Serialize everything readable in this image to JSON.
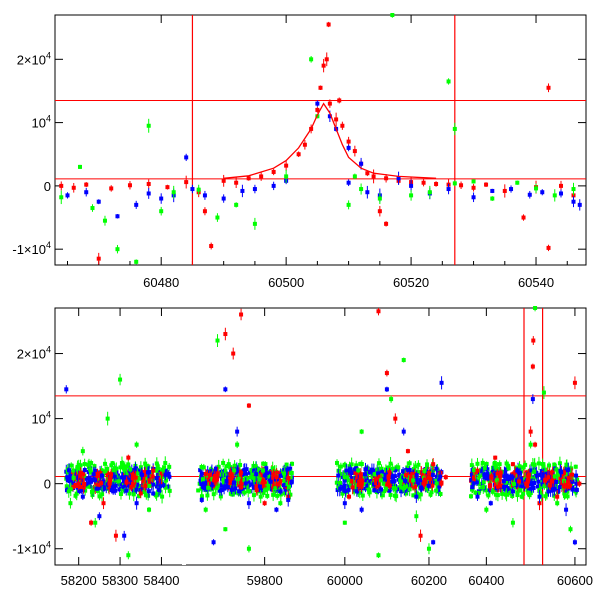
{
  "chart_data": [
    {
      "type": "scatter",
      "panel": "top",
      "title": "",
      "xlabel": "",
      "ylabel": "",
      "xlim": [
        60463,
        60548
      ],
      "ylim": [
        -12500,
        27000
      ],
      "x_ticks": [
        60480,
        60500,
        60520,
        60540
      ],
      "x_tick_labels": [
        "60480",
        "60500",
        "60520",
        "60540"
      ],
      "y_ticks": [
        -10000,
        0,
        10000,
        20000
      ],
      "y_tick_labels": [
        {
          "value": -10000,
          "base": "-1×10",
          "exp": "4"
        },
        {
          "value": 0,
          "base": "0",
          "exp": ""
        },
        {
          "value": 10000,
          "base": "10",
          "exp": "4"
        },
        {
          "value": 20000,
          "base": "2×10",
          "exp": "4"
        }
      ],
      "hlines": [
        13500,
        1100
      ],
      "vlines": [
        60485,
        60527
      ],
      "series": [
        {
          "color": "#ff0000",
          "points": [
            [
              60464,
              0
            ],
            [
              60466,
              -300
            ],
            [
              60468,
              200
            ],
            [
              60472,
              -400
            ],
            [
              60475,
              100
            ],
            [
              60478,
              300
            ],
            [
              60481,
              -200
            ],
            [
              60484,
              600
            ],
            [
              60486,
              -1000
            ],
            [
              60487,
              -4000
            ],
            [
              60488,
              -9500
            ],
            [
              60490,
              800
            ],
            [
              60492,
              500
            ],
            [
              60494,
              1200
            ],
            [
              60496,
              1500
            ],
            [
              60498,
              2200
            ],
            [
              60500,
              3200
            ],
            [
              60502,
              5000
            ],
            [
              60503,
              6500
            ],
            [
              60504,
              9000
            ],
            [
              60505,
              12000
            ],
            [
              60505.5,
              15500
            ],
            [
              60506,
              19000
            ],
            [
              60506.5,
              20000
            ],
            [
              60506.8,
              25500
            ],
            [
              60507,
              13000
            ],
            [
              60508,
              10500
            ],
            [
              60508.5,
              13500
            ],
            [
              60509,
              9500
            ],
            [
              60510,
              7000
            ],
            [
              60511,
              5500
            ],
            [
              60512,
              3500
            ],
            [
              60513,
              2000
            ],
            [
              60514,
              1500
            ],
            [
              60516,
              1200
            ],
            [
              60518,
              800
            ],
            [
              60520,
              600
            ],
            [
              60522,
              500
            ],
            [
              60524,
              300
            ],
            [
              60526,
              200
            ],
            [
              60528,
              100
            ],
            [
              60530,
              -300
            ],
            [
              60532,
              200
            ],
            [
              60535,
              -800
            ],
            [
              60538,
              -5000
            ],
            [
              60540,
              -200
            ],
            [
              60542,
              15500
            ],
            [
              60542,
              -9800
            ],
            [
              60544,
              0
            ],
            [
              60546,
              -1500
            ],
            [
              60470,
              -11500
            ],
            [
              60515,
              -4000
            ],
            [
              60516,
              -6000
            ]
          ]
        },
        {
          "color": "#0000ff",
          "points": [
            [
              60465,
              -1500
            ],
            [
              60468,
              -1000
            ],
            [
              60470,
              -2500
            ],
            [
              60473,
              -4800
            ],
            [
              60476,
              -3000
            ],
            [
              60478,
              -1200
            ],
            [
              60480,
              -2000
            ],
            [
              60482,
              -1500
            ],
            [
              60484,
              4500
            ],
            [
              60485,
              -500
            ],
            [
              60487,
              -1500
            ],
            [
              60490,
              -2000
            ],
            [
              60493,
              -800
            ],
            [
              60495,
              -500
            ],
            [
              60498,
              0
            ],
            [
              60500,
              800
            ],
            [
              60505,
              13000
            ],
            [
              60507,
              11000
            ],
            [
              60508,
              9000
            ],
            [
              60510,
              6000
            ],
            [
              60512,
              3500
            ],
            [
              60513,
              -1000
            ],
            [
              60515,
              -1500
            ],
            [
              60518,
              1200
            ],
            [
              60520,
              0
            ],
            [
              60523,
              -1200
            ],
            [
              60526,
              -500
            ],
            [
              60530,
              -1800
            ],
            [
              60533,
              -800
            ],
            [
              60536,
              -500
            ],
            [
              60539,
              -1400
            ],
            [
              60541,
              -1000
            ],
            [
              60544,
              -1200
            ],
            [
              60546,
              -2500
            ],
            [
              60547,
              -3000
            ],
            [
              60510,
              500
            ]
          ]
        },
        {
          "color": "#00ff00",
          "points": [
            [
              60464,
              -1800
            ],
            [
              60467,
              3000
            ],
            [
              60469,
              -3500
            ],
            [
              60471,
              -5500
            ],
            [
              60473,
              -10000
            ],
            [
              60476,
              -12000
            ],
            [
              60478,
              9500
            ],
            [
              60480,
              -4000
            ],
            [
              60482,
              -1000
            ],
            [
              60486,
              -600
            ],
            [
              60489,
              -5000
            ],
            [
              60492,
              -3000
            ],
            [
              60495,
              -6000
            ],
            [
              60500,
              1500
            ],
            [
              60504,
              20000
            ],
            [
              60505,
              11000
            ],
            [
              60511,
              1500
            ],
            [
              60512,
              -500
            ],
            [
              60515,
              -2000
            ],
            [
              60520,
              -1500
            ],
            [
              60523,
              -1000
            ],
            [
              60526,
              16500
            ],
            [
              60527,
              9000
            ],
            [
              60527,
              400
            ],
            [
              60530,
              700
            ],
            [
              60533,
              -2000
            ],
            [
              60537,
              500
            ],
            [
              60540,
              -400
            ],
            [
              60543,
              -1500
            ],
            [
              60546,
              -500
            ],
            [
              60517,
              27000
            ],
            [
              60510,
              -3000
            ]
          ]
        }
      ],
      "model_curve": [
        [
          60490,
          1200
        ],
        [
          60494,
          1600
        ],
        [
          60498,
          2800
        ],
        [
          60500,
          4000
        ],
        [
          60502,
          6000
        ],
        [
          60504,
          9000
        ],
        [
          60505,
          11200
        ],
        [
          60506,
          13000
        ],
        [
          60507,
          11500
        ],
        [
          60508,
          9000
        ],
        [
          60509,
          6500
        ],
        [
          60510,
          4500
        ],
        [
          60512,
          2800
        ],
        [
          60514,
          2000
        ],
        [
          60518,
          1500
        ],
        [
          60524,
          1200
        ]
      ]
    },
    {
      "type": "scatter",
      "panel": "bottom",
      "title": "",
      "xlabel": "",
      "ylabel": "",
      "segments": [
        {
          "xlim": [
            58150,
            58440
          ],
          "x_ticks": [
            58200,
            58300,
            58400
          ],
          "x_tick_labels": [
            "58200",
            "58300",
            "58400"
          ]
        },
        {
          "xlim": [
            59610,
            59890
          ],
          "x_ticks": [
            59800
          ],
          "x_tick_labels": [
            "59800"
          ]
        },
        {
          "xlim": [
            59960,
            60250
          ],
          "x_ticks": [
            60000,
            60200
          ],
          "x_tick_labels": [
            "60000",
            "60200"
          ]
        },
        {
          "xlim": [
            60345,
            60625
          ],
          "x_ticks": [
            60400,
            60600
          ],
          "x_tick_labels": [
            "60400",
            "60600"
          ]
        }
      ],
      "ylim": [
        -12500,
        27000
      ],
      "y_ticks": [
        -10000,
        0,
        10000,
        20000
      ],
      "y_tick_labels": [
        {
          "value": -10000,
          "base": "-1×10",
          "exp": "4"
        },
        {
          "value": 0,
          "base": "0",
          "exp": ""
        },
        {
          "value": 10000,
          "base": "10",
          "exp": "4"
        },
        {
          "value": 20000,
          "base": "2×10",
          "exp": "4"
        }
      ],
      "hlines": [
        13500,
        1100
      ],
      "vlines": [
        60485,
        60527
      ],
      "series": [
        {
          "color": "#ff0000",
          "points": [
            [
              58200,
              0
            ],
            [
              58230,
              -6000
            ],
            [
              58260,
              -3000
            ],
            [
              58290,
              -8000
            ],
            [
              58320,
              4000
            ],
            [
              58350,
              -1500
            ],
            [
              58380,
              2000
            ],
            [
              59650,
              1500
            ],
            [
              59700,
              23000
            ],
            [
              59720,
              20000
            ],
            [
              59740,
              26000
            ],
            [
              59760,
              12000
            ],
            [
              59780,
              -1000
            ],
            [
              59800,
              -3000
            ],
            [
              59830,
              1000
            ],
            [
              59860,
              -2000
            ],
            [
              60010,
              -2000
            ],
            [
              60040,
              500
            ],
            [
              60080,
              26500
            ],
            [
              60100,
              17000
            ],
            [
              60120,
              10000
            ],
            [
              60150,
              5000
            ],
            [
              60180,
              -8000
            ],
            [
              60210,
              3000
            ],
            [
              60240,
              1000
            ],
            [
              60380,
              2000
            ],
            [
              60420,
              4000
            ],
            [
              60460,
              3000
            ],
            [
              60490,
              0
            ],
            [
              60500,
              8000
            ],
            [
              60505,
              18000
            ],
            [
              60506,
              22000
            ],
            [
              60510,
              6000
            ],
            [
              60520,
              -3000
            ],
            [
              60540,
              1000
            ],
            [
              60560,
              -2000
            ],
            [
              60600,
              15500
            ],
            [
              60610,
              0
            ]
          ]
        },
        {
          "color": "#0000ff",
          "points": [
            [
              58170,
              14500
            ],
            [
              58210,
              -2000
            ],
            [
              58250,
              -5000
            ],
            [
              58280,
              -1000
            ],
            [
              58310,
              -8000
            ],
            [
              58340,
              -3000
            ],
            [
              58380,
              -1500
            ],
            [
              59640,
              -2500
            ],
            [
              59670,
              -9000
            ],
            [
              59700,
              14500
            ],
            [
              59730,
              8000
            ],
            [
              59760,
              -3000
            ],
            [
              59790,
              -1000
            ],
            [
              59830,
              -4000
            ],
            [
              59860,
              -2500
            ],
            [
              60000,
              -3000
            ],
            [
              60040,
              -4000
            ],
            [
              60070,
              -1000
            ],
            [
              60100,
              14500
            ],
            [
              60140,
              8000
            ],
            [
              60170,
              -2000
            ],
            [
              60210,
              -9000
            ],
            [
              60230,
              15500
            ],
            [
              60380,
              -2000
            ],
            [
              60410,
              -3000
            ],
            [
              60440,
              -500
            ],
            [
              60470,
              2000
            ],
            [
              60505,
              13000
            ],
            [
              60520,
              -2000
            ],
            [
              60550,
              -1000
            ],
            [
              60580,
              -4000
            ],
            [
              60600,
              -9000
            ]
          ]
        },
        {
          "color": "#00ff00",
          "points": [
            [
              58180,
              -3000
            ],
            [
              58210,
              5000
            ],
            [
              58240,
              -6000
            ],
            [
              58270,
              10000
            ],
            [
              58300,
              16000
            ],
            [
              58320,
              -11000
            ],
            [
              58340,
              6000
            ],
            [
              58370,
              -4000
            ],
            [
              59650,
              -4000
            ],
            [
              59680,
              22000
            ],
            [
              59700,
              -7000
            ],
            [
              59730,
              6000
            ],
            [
              59760,
              -10000
            ],
            [
              59790,
              -2000
            ],
            [
              59840,
              -3000
            ],
            [
              60000,
              -6000
            ],
            [
              60040,
              8000
            ],
            [
              60080,
              -11000
            ],
            [
              60110,
              13000
            ],
            [
              60140,
              19000
            ],
            [
              60170,
              -5000
            ],
            [
              60200,
              -10000
            ],
            [
              60400,
              -4000
            ],
            [
              60430,
              3000
            ],
            [
              60460,
              -6000
            ],
            [
              60480,
              -2000
            ],
            [
              60500,
              6000
            ],
            [
              60510,
              27000
            ],
            [
              60530,
              14000
            ],
            [
              60560,
              -3000
            ],
            [
              60590,
              -7000
            ]
          ]
        }
      ]
    }
  ]
}
